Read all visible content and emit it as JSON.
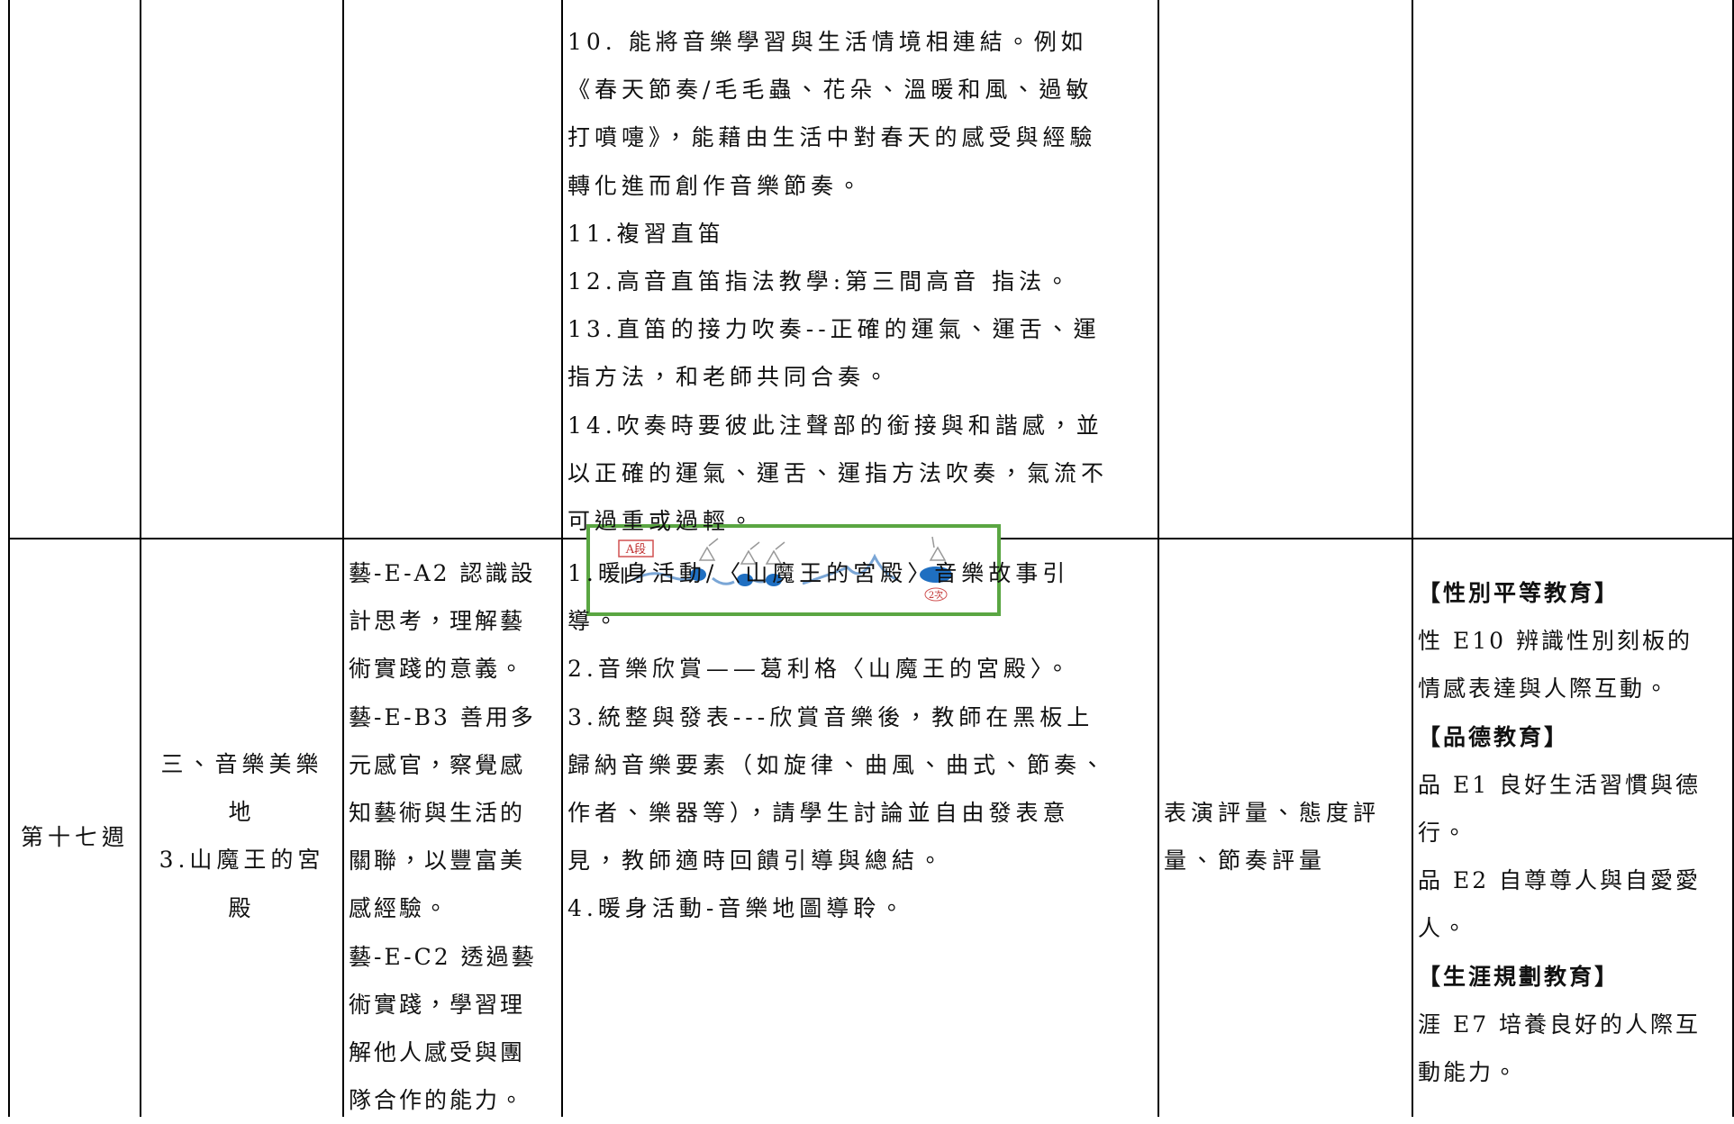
{
  "table": {
    "rows": [
      {
        "cells": [
          {
            "lines": []
          },
          {
            "lines": []
          },
          {
            "lines": []
          },
          {
            "lines": [
              "10. 能將音樂學習與生活情境相連結。例如",
              "《春天節奏/毛毛蟲、花朵、溫暖和風、過敏",
              "打噴嚏》，能藉由生活中對春天的感受與經驗",
              "轉化進而創作音樂節奏。",
              "11.複習直笛",
              "12.高音直笛指法教學:第三間高音 指法。",
              "13.直笛的接力吹奏--正確的運氣、運舌、運",
              "指方法，和老師共同合奏。",
              "14.吹奏時要彼此注聲部的銜接與和諧感，並",
              "以正確的運氣、運舌、運指方法吹奏，氣流不",
              "可過重或過輕。"
            ]
          },
          {
            "lines": []
          },
          {
            "lines": []
          }
        ]
      },
      {
        "cells": [
          {
            "lines": [
              "第十七週"
            ]
          },
          {
            "lines": [
              "三、音樂美樂",
              "地",
              "3.山魔王的宮",
              "殿"
            ]
          },
          {
            "lines": [
              "藝-E-A2 認識設",
              "計思考，理解藝",
              "術實踐的意義。",
              "藝-E-B3 善用多",
              "元感官，察覺感",
              "知藝術與生活的",
              "關聯，以豐富美",
              "感經驗。",
              "藝-E-C2 透過藝",
              "術實踐，學習理",
              "解他人感受與團",
              "隊合作的能力。"
            ]
          },
          {
            "lines": [
              "1.暖身活動/〈山魔王的宮殿〉音樂故事引",
              "導。",
              "2.音樂欣賞——葛利格〈山魔王的宮殿〉。",
              "3.統整與發表---欣賞音樂後，教師在黑板上",
              "歸納音樂要素（如旋律、曲風、曲式、節奏、",
              "作者、樂器等），請學生討論並自由發表意",
              "見，教師適時回饋引導與總結。",
              "4.暖身活動-音樂地圖導聆。"
            ]
          },
          {
            "lines": [
              "表演評量、態度評",
              "量、節奏評量"
            ]
          },
          {
            "lines": [
              "【性別平等教育】",
              "性 E10 辨識性別刻板的",
              "情感表達與人際互動。",
              "【品德教育】",
              "品 E1 良好生活習慣與德",
              "行。",
              "品 E2 自尊尊人與自愛愛",
              "人。",
              "【生涯規劃教育】",
              "涯 E7 培養良好的人際互",
              "動能力。"
            ]
          }
        ]
      }
    ]
  },
  "figure": {
    "labels": [
      "A段",
      "2次"
    ]
  }
}
